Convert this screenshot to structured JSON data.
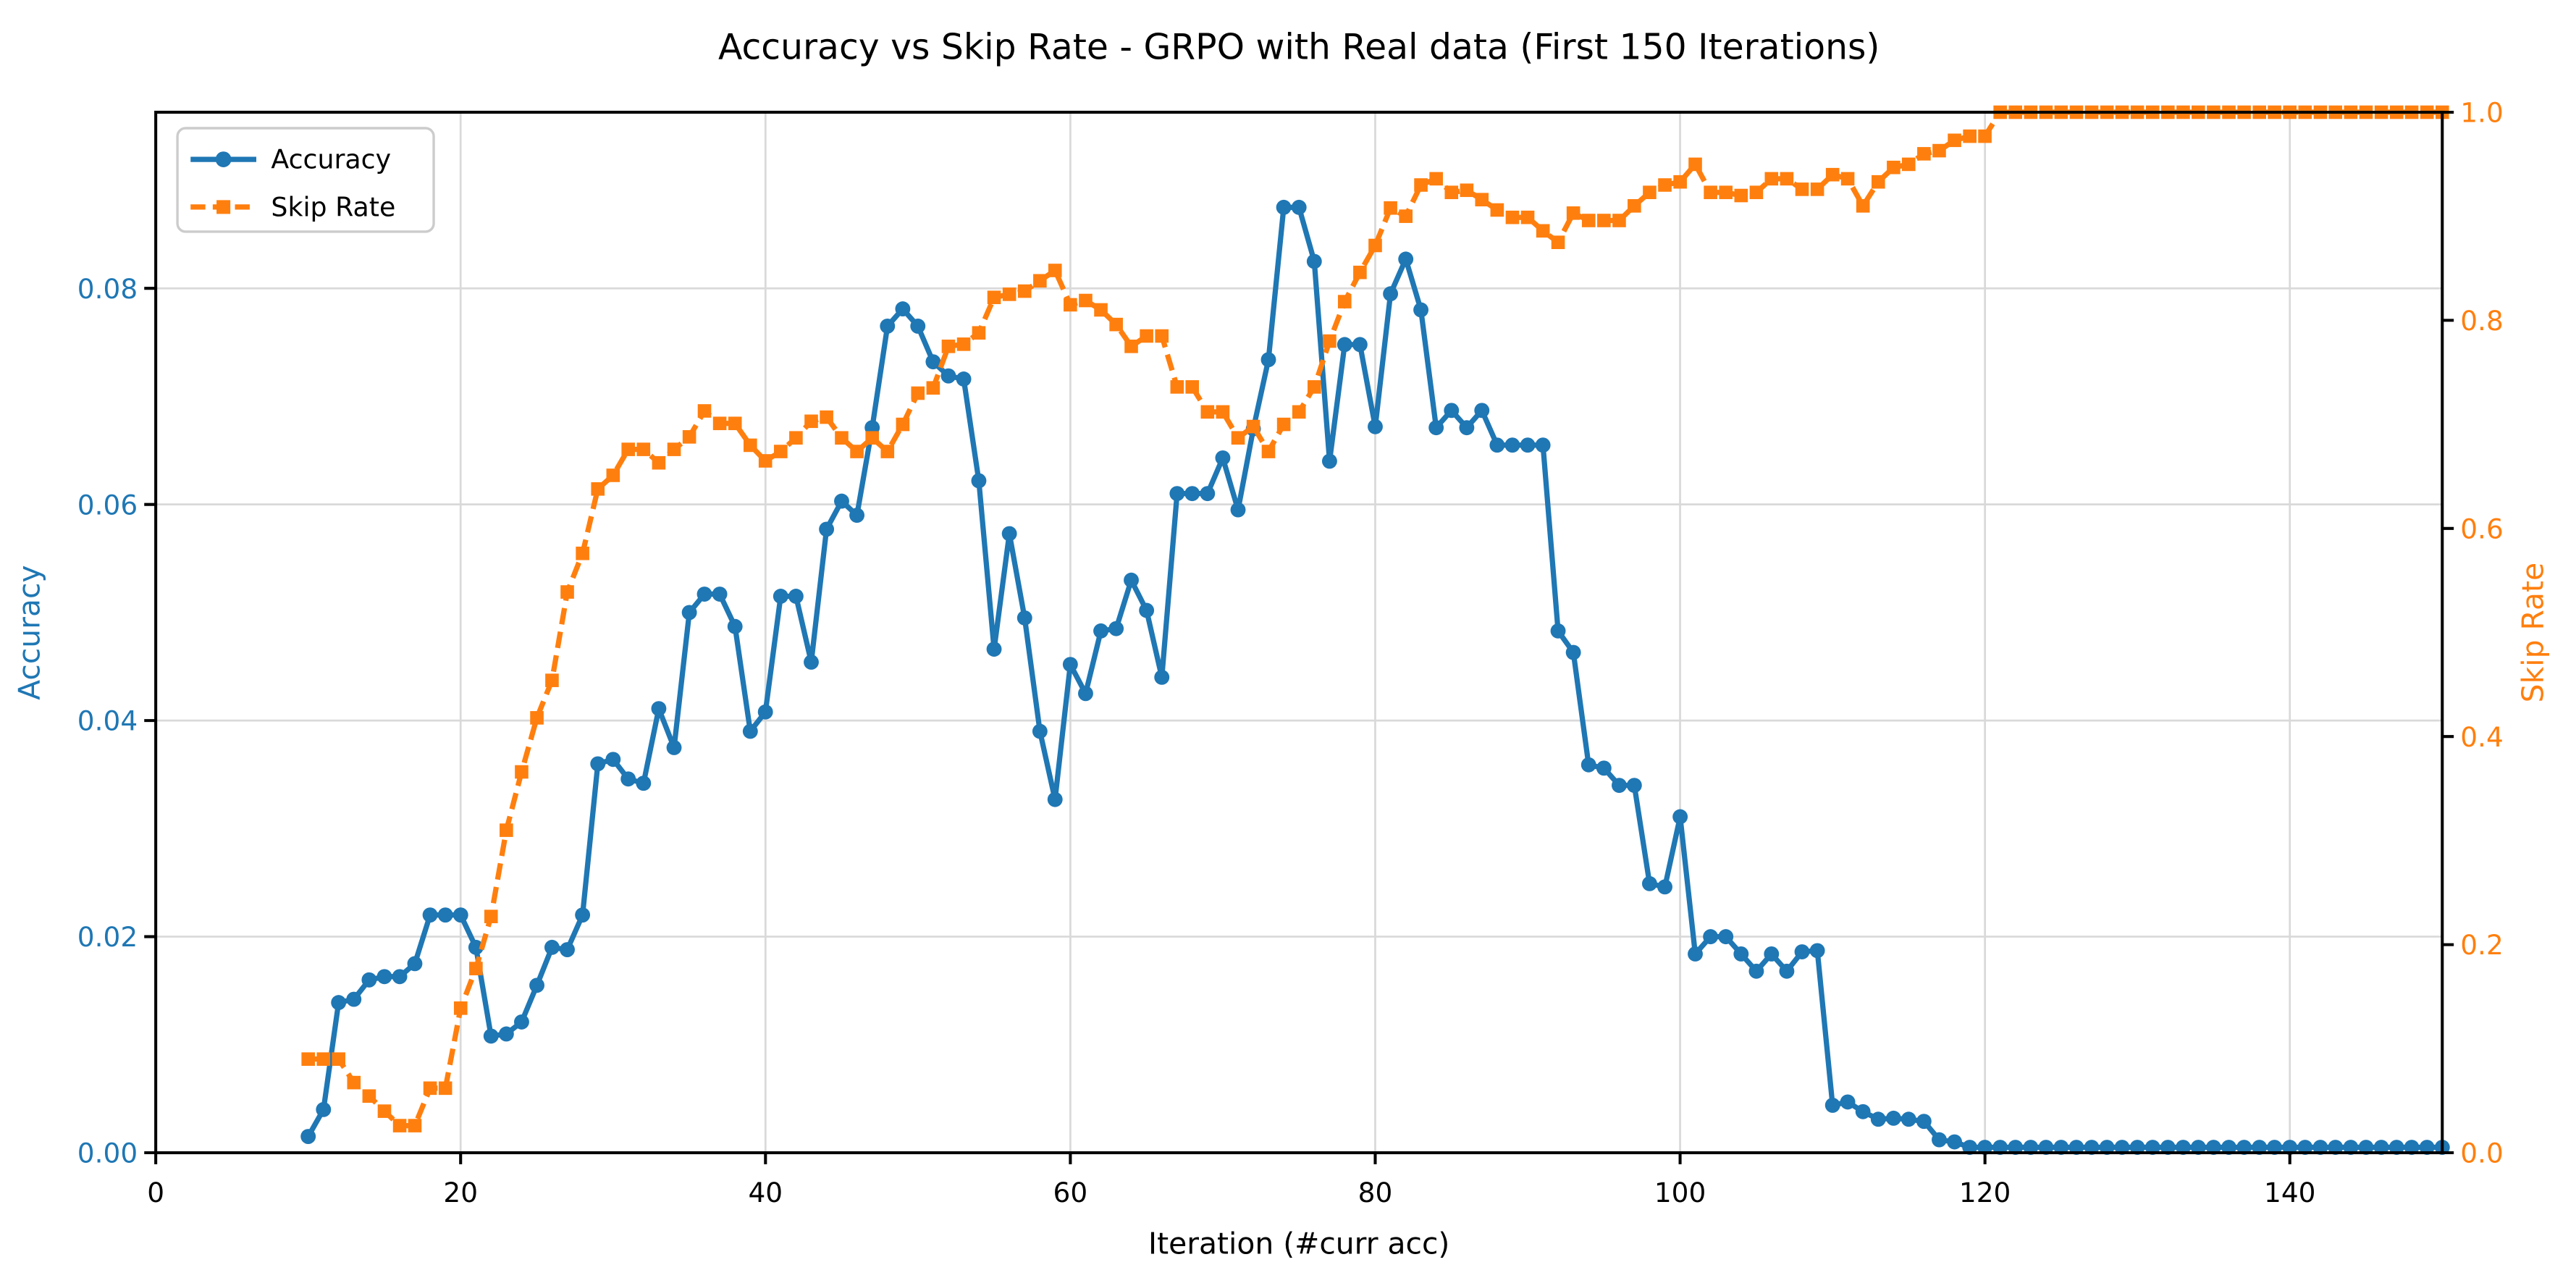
{
  "figure": {
    "title": "Accuracy vs Skip Rate - GRPO with Real data (First 150 Iterations)",
    "xlabel": "Iteration (#curr acc)",
    "ylabel_left": "Accuracy",
    "ylabel_right": "Skip Rate"
  },
  "legend": {
    "position": "upper left",
    "items": [
      {
        "label": "Accuracy",
        "marker": "circle",
        "line": "solid"
      },
      {
        "label": "Skip Rate",
        "marker": "square",
        "line": "dashed"
      }
    ]
  },
  "chart_data": {
    "type": "line",
    "title": "Accuracy vs Skip Rate - GRPO with Real data (First 150 Iterations)",
    "xlabel": "Iteration (#curr acc)",
    "ylabel_left": "Accuracy",
    "ylabel_right": "Skip Rate",
    "grid": true,
    "legend_position": "upper left",
    "xlim": [
      0,
      150
    ],
    "ylim_left": [
      0,
      0.0963
    ],
    "ylim_right": [
      0,
      1.0
    ],
    "x_ticks": [
      0,
      20,
      40,
      60,
      80,
      100,
      120,
      140
    ],
    "x_tick_labels": [
      "0",
      "20",
      "40",
      "60",
      "80",
      "100",
      "120",
      "140"
    ],
    "y_ticks_left": [
      0.0,
      0.02,
      0.04,
      0.06,
      0.08
    ],
    "y_tick_labels_left": [
      "0.00",
      "0.02",
      "0.04",
      "0.06",
      "0.08"
    ],
    "y_ticks_right": [
      0.0,
      0.2,
      0.4,
      0.6,
      0.8,
      1.0
    ],
    "y_tick_labels_right": [
      "0.0",
      "0.2",
      "0.4",
      "0.6",
      "0.8",
      "1.0"
    ],
    "colors": {
      "accuracy": "#1f77b4",
      "skip_rate": "#ff7f0e",
      "grid": "#d9d9d9",
      "spine": "#000000",
      "x_tick_label": "#000000",
      "title": "#000000",
      "legend_border": "#cccccc"
    },
    "x_start": 10,
    "x_step": 1,
    "x_end": 150,
    "series": [
      {
        "name": "Accuracy",
        "axis": "left",
        "color": "#1f77b4",
        "marker": "circle",
        "line_style": "solid",
        "values": [
          0.0015,
          0.004,
          0.0139,
          0.0142,
          0.016,
          0.0163,
          0.0163,
          0.0175,
          0.022,
          0.022,
          0.022,
          0.019,
          0.0108,
          0.011,
          0.0121,
          0.0155,
          0.019,
          0.0188,
          0.022,
          0.036,
          0.0364,
          0.0346,
          0.0342,
          0.0411,
          0.0375,
          0.05,
          0.0517,
          0.0517,
          0.0487,
          0.039,
          0.0408,
          0.0515,
          0.0515,
          0.0454,
          0.0577,
          0.0603,
          0.059,
          0.0671,
          0.0765,
          0.0781,
          0.0765,
          0.0732,
          0.0719,
          0.0716,
          0.0622,
          0.0466,
          0.0573,
          0.0495,
          0.039,
          0.0327,
          0.0452,
          0.0425,
          0.0483,
          0.0485,
          0.053,
          0.0502,
          0.044,
          0.061,
          0.061,
          0.061,
          0.0643,
          0.0595,
          0.067,
          0.0734,
          0.0875,
          0.0875,
          0.0825,
          0.064,
          0.0748,
          0.0748,
          0.0672,
          0.0795,
          0.0827,
          0.078,
          0.0671,
          0.0687,
          0.0671,
          0.0687,
          0.0655,
          0.0655,
          0.0655,
          0.0655,
          0.0483,
          0.0463,
          0.0359,
          0.0356,
          0.034,
          0.034,
          0.0249,
          0.0246,
          0.0311,
          0.0184,
          0.02,
          0.02,
          0.0184,
          0.0168,
          0.0184,
          0.0168,
          0.0186,
          0.0187,
          0.0044,
          0.0047,
          0.0038,
          0.0031,
          0.0032,
          0.0031,
          0.0029,
          0.0012,
          0.001,
          0.0005,
          0.0005,
          0.0005,
          0.0005,
          0.0005,
          0.0005,
          0.0005,
          0.0005,
          0.0005,
          0.0005,
          0.0005,
          0.0005,
          0.0005,
          0.0005,
          0.0005,
          0.0005,
          0.0005,
          0.0005,
          0.0005,
          0.0005,
          0.0005,
          0.0005,
          0.0005,
          0.0005,
          0.0005,
          0.0005,
          0.0005,
          0.0005,
          0.0005,
          0.0005,
          0.0005,
          0.0005
        ]
      },
      {
        "name": "Skip Rate",
        "axis": "right",
        "color": "#ff7f0e",
        "marker": "square",
        "line_style": "dashed",
        "values": [
          0.09,
          0.09,
          0.09,
          0.0675,
          0.0545,
          0.04,
          0.026,
          0.026,
          0.062,
          0.062,
          0.139,
          0.177,
          0.227,
          0.31,
          0.366,
          0.418,
          0.454,
          0.539,
          0.576,
          0.638,
          0.651,
          0.676,
          0.676,
          0.663,
          0.676,
          0.688,
          0.713,
          0.701,
          0.701,
          0.68,
          0.665,
          0.674,
          0.687,
          0.703,
          0.707,
          0.687,
          0.674,
          0.687,
          0.674,
          0.7,
          0.73,
          0.735,
          0.775,
          0.777,
          0.788,
          0.822,
          0.825,
          0.828,
          0.838,
          0.848,
          0.815,
          0.819,
          0.81,
          0.796,
          0.775,
          0.785,
          0.785,
          0.736,
          0.736,
          0.712,
          0.712,
          0.687,
          0.698,
          0.674,
          0.7,
          0.712,
          0.736,
          0.78,
          0.818,
          0.846,
          0.872,
          0.908,
          0.9,
          0.93,
          0.936,
          0.923,
          0.925,
          0.916,
          0.906,
          0.899,
          0.899,
          0.886,
          0.875,
          0.903,
          0.896,
          0.896,
          0.896,
          0.91,
          0.923,
          0.93,
          0.933,
          0.95,
          0.923,
          0.923,
          0.92,
          0.923,
          0.936,
          0.936,
          0.926,
          0.926,
          0.94,
          0.936,
          0.91,
          0.933,
          0.947,
          0.95,
          0.96,
          0.963,
          0.973,
          0.977,
          0.977,
          1.0,
          1.0,
          1.0,
          1.0,
          1.0,
          1.0,
          1.0,
          1.0,
          1.0,
          1.0,
          1.0,
          1.0,
          1.0,
          1.0,
          1.0,
          1.0,
          1.0,
          1.0,
          1.0,
          1.0,
          1.0,
          1.0,
          1.0,
          1.0,
          1.0,
          1.0,
          1.0,
          1.0,
          1.0,
          1.0
        ]
      }
    ]
  }
}
